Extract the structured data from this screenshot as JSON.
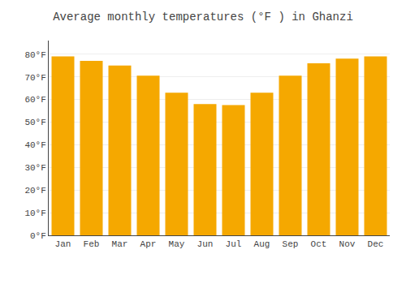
{
  "chart_data": {
    "type": "bar",
    "title": "Average monthly temperatures (°F ) in Ghanzi",
    "categories": [
      "Jan",
      "Feb",
      "Mar",
      "Apr",
      "May",
      "Jun",
      "Jul",
      "Aug",
      "Sep",
      "Oct",
      "Nov",
      "Dec"
    ],
    "values": [
      79,
      77,
      75,
      70.5,
      63,
      58,
      57.5,
      63,
      70.5,
      76,
      78,
      79
    ],
    "color": "#F5A800",
    "ylim": [
      0,
      86
    ],
    "yticks": [
      {
        "value": 0,
        "label": "0°F"
      },
      {
        "value": 10,
        "label": "10°F"
      },
      {
        "value": 20,
        "label": "20°F"
      },
      {
        "value": 30,
        "label": "30°F"
      },
      {
        "value": 40,
        "label": "40°F"
      },
      {
        "value": 50,
        "label": "50°F"
      },
      {
        "value": 60,
        "label": "60°F"
      },
      {
        "value": 70,
        "label": "70°F"
      },
      {
        "value": 80,
        "label": "80°F"
      }
    ],
    "grid": true
  }
}
